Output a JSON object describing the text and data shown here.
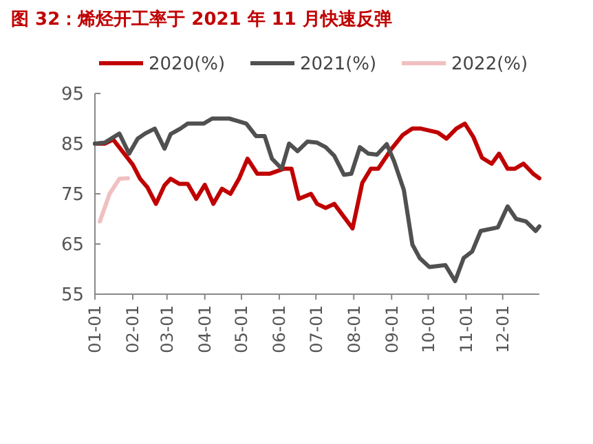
{
  "chart_data": {
    "type": "line",
    "title": "图 32：烯烃开工率于 2021 年 11 月快速反弹",
    "xlim": [
      "--01-01",
      "--12-31"
    ],
    "xticks": [
      {
        "value": "--01-01",
        "label": "01-01"
      },
      {
        "value": "--02-01",
        "label": "02-01"
      },
      {
        "value": "--03-01",
        "label": "03-01"
      },
      {
        "value": "--04-01",
        "label": "04-01"
      },
      {
        "value": "--05-01",
        "label": "05-01"
      },
      {
        "value": "--06-01",
        "label": "06-01"
      },
      {
        "value": "--07-01",
        "label": "07-01"
      },
      {
        "value": "--08-01",
        "label": "08-01"
      },
      {
        "value": "--09-01",
        "label": "09-01"
      },
      {
        "value": "--10-01",
        "label": "10-01"
      },
      {
        "value": "--11-01",
        "label": "11-01"
      },
      {
        "value": "--12-01",
        "label": "12-01"
      }
    ],
    "ylim": [
      55,
      95
    ],
    "yticks": [
      55,
      65,
      75,
      85,
      95
    ],
    "grid": false,
    "legend": "top",
    "marker": "none",
    "line_style": "solid",
    "series": [
      {
        "name": "2020(%)",
        "color": "#c00000",
        "x": [
          "--01-01",
          "--01-09",
          "--01-16",
          "--01-25",
          "--02-01",
          "--02-07",
          "--02-13",
          "--02-20",
          "--02-27",
          "--03-04",
          "--03-11",
          "--03-18",
          "--03-25",
          "--04-01",
          "--04-08",
          "--04-15",
          "--04-22",
          "--04-29",
          "--05-06",
          "--05-14",
          "--05-24",
          "--05-30",
          "--06-05",
          "--06-11",
          "--06-17",
          "--06-27",
          "--07-02",
          "--07-09",
          "--07-16",
          "--07-24",
          "--07-31",
          "--08-08",
          "--08-15",
          "--08-21",
          "--09-01",
          "--09-10",
          "--09-18",
          "--09-25",
          "--10-09",
          "--10-16",
          "--10-24",
          "--10-31",
          "--11-07",
          "--11-14",
          "--11-22",
          "--11-28",
          "--12-05",
          "--12-11",
          "--12-18",
          "--12-26",
          "--12-31"
        ],
        "values": [
          85,
          85,
          85.8,
          83,
          80.8,
          78,
          76.3,
          73,
          76.7,
          78,
          77,
          77,
          74,
          76.8,
          73,
          76,
          75,
          78,
          82,
          79,
          79,
          79.5,
          80,
          80,
          74,
          75,
          73,
          72.2,
          73,
          70.4,
          68.1,
          77.2,
          80,
          80,
          84,
          86.7,
          88,
          88,
          87.2,
          86,
          88,
          89,
          86.3,
          82.2,
          81,
          83,
          80,
          80,
          81,
          79,
          78.1
        ]
      },
      {
        "name": "2021(%)",
        "color": "#505050",
        "x": [
          "--01-01",
          "--01-09",
          "--01-21",
          "--01-29",
          "--02-05",
          "--02-11",
          "--02-19",
          "--02-27",
          "--03-04",
          "--03-12",
          "--03-18",
          "--03-31",
          "--04-07",
          "--04-13",
          "--04-21",
          "--04-28",
          "--05-05",
          "--05-13",
          "--05-20",
          "--05-26",
          "--06-03",
          "--06-09",
          "--06-16",
          "--06-24",
          "--07-02",
          "--07-09",
          "--07-16",
          "--07-24",
          "--07-30",
          "--08-06",
          "--08-13",
          "--08-20",
          "--08-28",
          "--09-03",
          "--09-11",
          "--09-18",
          "--09-24",
          "--10-02",
          "--10-15",
          "--10-23",
          "--10-30",
          "--11-06",
          "--11-13",
          "--11-27",
          "--12-05",
          "--12-12",
          "--12-20",
          "--12-28",
          "--12-31"
        ],
        "values": [
          85,
          85.2,
          87,
          83,
          86,
          87,
          88,
          84,
          86.9,
          88,
          89,
          89,
          90,
          90,
          90,
          89.5,
          89,
          86.5,
          86.5,
          82,
          80,
          85,
          83.5,
          85.4,
          85.2,
          84.3,
          82.6,
          78.8,
          79,
          84.3,
          83,
          82.8,
          84.9,
          81.5,
          75.8,
          64.9,
          62.2,
          60.4,
          60.8,
          57.6,
          62.2,
          63.5,
          67.6,
          68.3,
          72.5,
          70,
          69.5,
          67.6,
          68.5
        ]
      },
      {
        "name": "2022(%)",
        "color": "#f0c0c0",
        "x": [
          "--01-05",
          "--01-13",
          "--01-21",
          "--01-28"
        ],
        "values": [
          69.5,
          75,
          78,
          78.1
        ]
      }
    ]
  }
}
